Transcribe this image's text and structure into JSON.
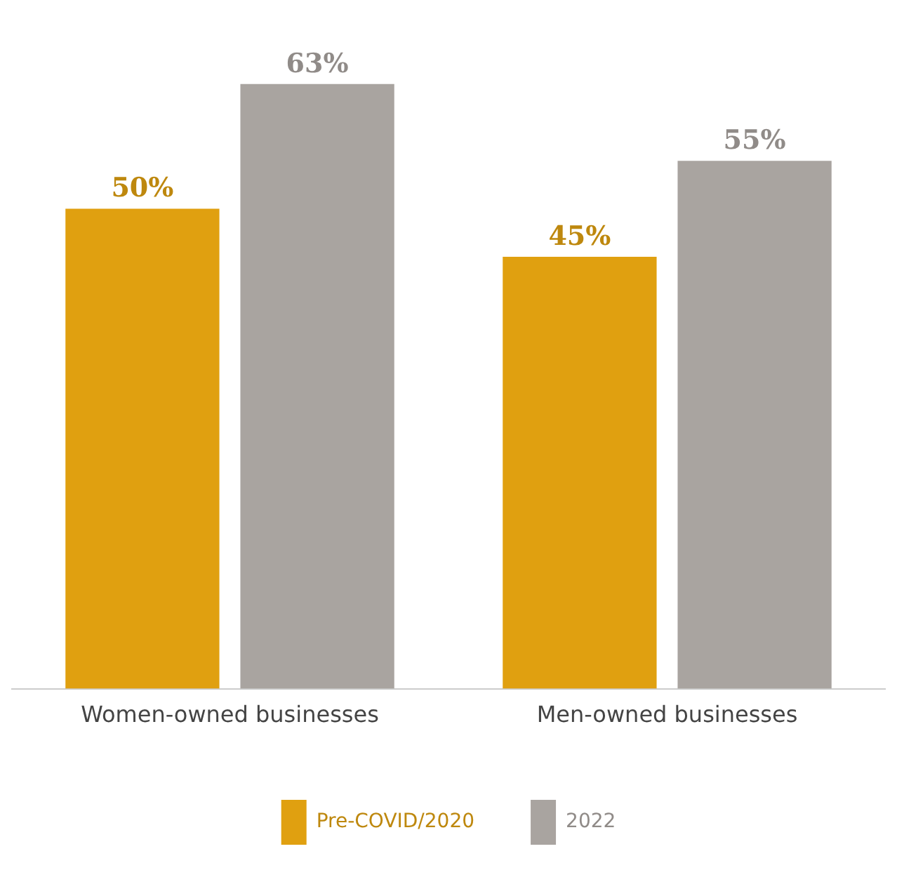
{
  "chart_data": {
    "type": "bar",
    "categories": [
      "Women-owned businesses",
      "Men-owned businesses"
    ],
    "series": [
      {
        "name": "Pre-COVID/2020",
        "color": "#e0a010",
        "values": [
          50,
          45
        ],
        "value_labels": [
          "50%",
          "45%"
        ]
      },
      {
        "name": "2022",
        "color": "#a9a4a0",
        "values": [
          63,
          55
        ],
        "value_labels": [
          "63%",
          "55%"
        ]
      }
    ],
    "legend": "bottom",
    "grid": false
  }
}
